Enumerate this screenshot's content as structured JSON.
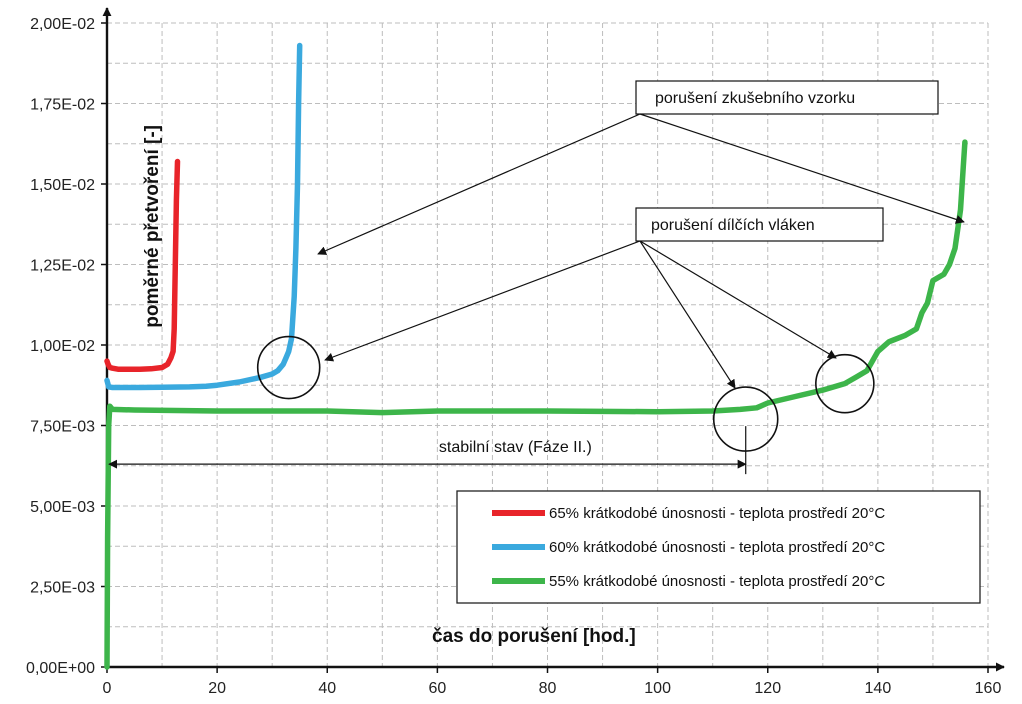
{
  "chart_data": {
    "type": "line",
    "title": "",
    "xlabel": "čas do porušení [hod.]",
    "ylabel": "poměrné přetvoření [-]",
    "xlim": [
      0,
      160
    ],
    "ylim": [
      0,
      0.02
    ],
    "grid": true,
    "legend_position": "bottom-right",
    "x_ticks": [
      {
        "value": 0,
        "label": "0"
      },
      {
        "value": 20,
        "label": "20"
      },
      {
        "value": 40,
        "label": "40"
      },
      {
        "value": 60,
        "label": "60"
      },
      {
        "value": 80,
        "label": "80"
      },
      {
        "value": 100,
        "label": "100"
      },
      {
        "value": 120,
        "label": "120"
      },
      {
        "value": 140,
        "label": "140"
      },
      {
        "value": 160,
        "label": "160"
      }
    ],
    "y_ticks": [
      {
        "value": 0,
        "label": "0,00E+00"
      },
      {
        "value": 0.0025,
        "label": "2,50E-03"
      },
      {
        "value": 0.005,
        "label": "5,00E-03"
      },
      {
        "value": 0.0075,
        "label": "7,50E-03"
      },
      {
        "value": 0.01,
        "label": "1,00E-02"
      },
      {
        "value": 0.0125,
        "label": "1,25E-02"
      },
      {
        "value": 0.015,
        "label": "1,50E-02"
      },
      {
        "value": 0.0175,
        "label": "1,75E-02"
      },
      {
        "value": 0.02,
        "label": "2,00E-02"
      }
    ],
    "series": [
      {
        "name": "65% krátkodobé únosnosti - teplota prostředí 20°C",
        "color": "#e8242a",
        "x": [
          0,
          0.2,
          0.5,
          1,
          2,
          4,
          6,
          8,
          10,
          11,
          11.6,
          12,
          12.2,
          12.4,
          12.6,
          12.8
        ],
        "y": [
          0.0095,
          0.0094,
          0.0093,
          0.00928,
          0.00925,
          0.00925,
          0.00925,
          0.00926,
          0.0093,
          0.0094,
          0.0096,
          0.0098,
          0.0105,
          0.0125,
          0.0145,
          0.0157
        ]
      },
      {
        "name": "60% krátkodobé únosnosti - teplota prostředí 20°C",
        "color": "#3aa9de",
        "x": [
          0,
          0.3,
          1,
          3,
          6,
          10,
          15,
          18,
          20,
          24,
          28,
          30,
          31,
          32,
          32.5,
          33,
          33.5,
          34,
          34.3,
          34.6,
          34.8,
          35
        ],
        "y": [
          0.0089,
          0.0087,
          0.00868,
          0.00868,
          0.00868,
          0.00869,
          0.0087,
          0.00872,
          0.00875,
          0.00885,
          0.009,
          0.0091,
          0.0092,
          0.0094,
          0.0096,
          0.0098,
          0.0102,
          0.0115,
          0.013,
          0.015,
          0.0175,
          0.0193
        ]
      },
      {
        "name": "55% krátkodobé únosnosti - teplota prostředí 20°C",
        "color": "#3db54a",
        "x": [
          0,
          0.1,
          0.3,
          0.5,
          1,
          5,
          20,
          40,
          50,
          60,
          80,
          100,
          110,
          115,
          118,
          120,
          125,
          130,
          132,
          134,
          136,
          138,
          140,
          142,
          145,
          147,
          148,
          149,
          150,
          152,
          153,
          154,
          155,
          155.5,
          155.8
        ],
        "y": [
          0,
          0.004,
          0.0075,
          0.0081,
          0.008,
          0.00798,
          0.00795,
          0.00795,
          0.0079,
          0.00795,
          0.00795,
          0.00793,
          0.00795,
          0.008,
          0.00805,
          0.0082,
          0.0084,
          0.0086,
          0.0087,
          0.0088,
          0.009,
          0.0092,
          0.0098,
          0.0101,
          0.0103,
          0.0105,
          0.011,
          0.0113,
          0.012,
          0.0122,
          0.0125,
          0.013,
          0.0142,
          0.0155,
          0.0163
        ]
      }
    ],
    "annotations": {
      "fracture_label": "porušení zkušebního vzorku",
      "fiber_label": "porušení dílčích vláken",
      "stable_label": "stabilní stav (Fáze II.)",
      "stable_range": [
        0,
        116
      ],
      "stable_level": 0.0063,
      "fiber_points": [
        {
          "x": 33,
          "y": 0.0093
        },
        {
          "x": 116,
          "y": 0.0077
        },
        {
          "x": 134,
          "y": 0.0088
        }
      ]
    }
  }
}
